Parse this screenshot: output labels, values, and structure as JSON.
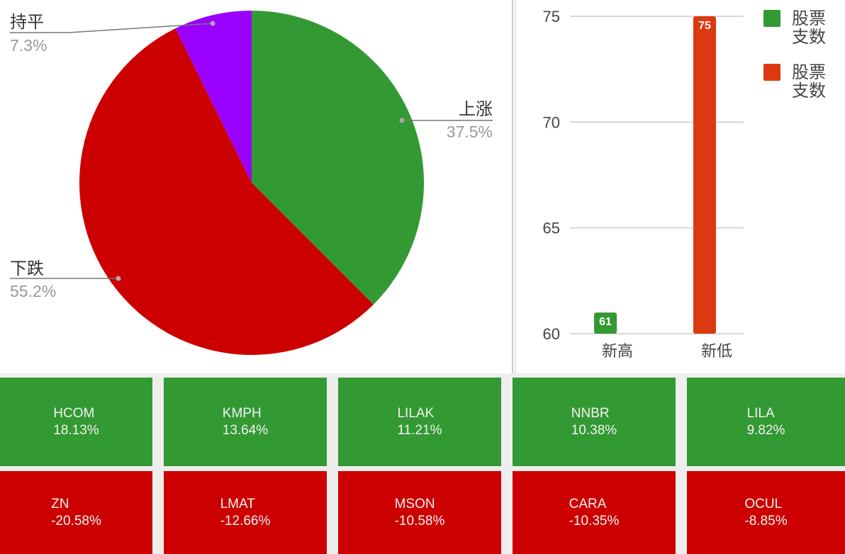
{
  "chart_data": [
    {
      "type": "pie",
      "slices": [
        {
          "label": "上涨",
          "value": 37.5,
          "value_label": "37.5%",
          "color": "#339933"
        },
        {
          "label": "下跌",
          "value": 55.2,
          "value_label": "55.2%",
          "color": "#cc0000"
        },
        {
          "label": "持平",
          "value": 7.3,
          "value_label": "7.3%",
          "color": "#9900ff"
        }
      ]
    },
    {
      "type": "bar",
      "categories": [
        "新高",
        "新低"
      ],
      "values": [
        61,
        75
      ],
      "colors": [
        "#339933",
        "#dc3912"
      ],
      "data_labels": [
        "61",
        "75"
      ],
      "ylim": [
        60,
        75
      ],
      "yticks": [
        "60",
        "65",
        "70",
        "75"
      ],
      "grid": true,
      "legend": {
        "position": "right",
        "entries": [
          {
            "label": "股票支数",
            "color": "#339933"
          },
          {
            "label": "股票支数",
            "color": "#dc3912"
          }
        ]
      }
    }
  ],
  "gainers": [
    {
      "symbol": "HCOM",
      "change": "18.13%"
    },
    {
      "symbol": "KMPH",
      "change": "13.64%"
    },
    {
      "symbol": "LILAK",
      "change": "11.21%"
    },
    {
      "symbol": "NNBR",
      "change": "10.38%"
    },
    {
      "symbol": "LILA",
      "change": "9.82%"
    }
  ],
  "losers": [
    {
      "symbol": "ZN",
      "change": "-20.58%"
    },
    {
      "symbol": "LMAT",
      "change": "-12.66%"
    },
    {
      "symbol": "MSON",
      "change": "-10.58%"
    },
    {
      "symbol": "CARA",
      "change": "-10.35%"
    },
    {
      "symbol": "OCUL",
      "change": "-8.85%"
    }
  ],
  "colors": {
    "gain": "#339933",
    "loss": "#cc0000"
  }
}
